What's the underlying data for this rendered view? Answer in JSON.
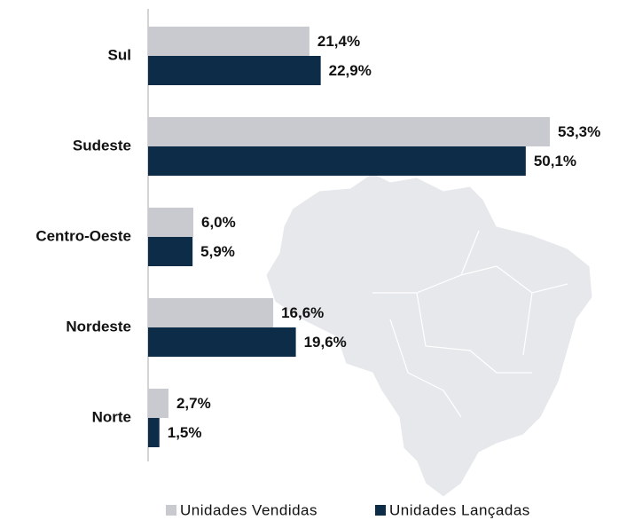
{
  "chart_data": {
    "type": "bar",
    "orientation": "horizontal",
    "categories": [
      "Sul",
      "Sudeste",
      "Centro-Oeste",
      "Nordeste",
      "Norte"
    ],
    "series": [
      {
        "name": "Unidades Vendidas",
        "color": "#c8cacf",
        "values": [
          21.4,
          53.3,
          6.0,
          16.6,
          2.7
        ],
        "value_labels": [
          "21,4%",
          "53,3%",
          "6,0%",
          "16,6%",
          "2,7%"
        ]
      },
      {
        "name": "Unidades Lançadas",
        "color": "#0d2c48",
        "values": [
          22.9,
          50.1,
          5.9,
          19.6,
          1.5
        ],
        "value_labels": [
          "22,9%",
          "50,1%",
          "5,9%",
          "19,6%",
          "1,5%"
        ]
      }
    ],
    "xlim": [
      0,
      60
    ],
    "legend": "bottom"
  }
}
